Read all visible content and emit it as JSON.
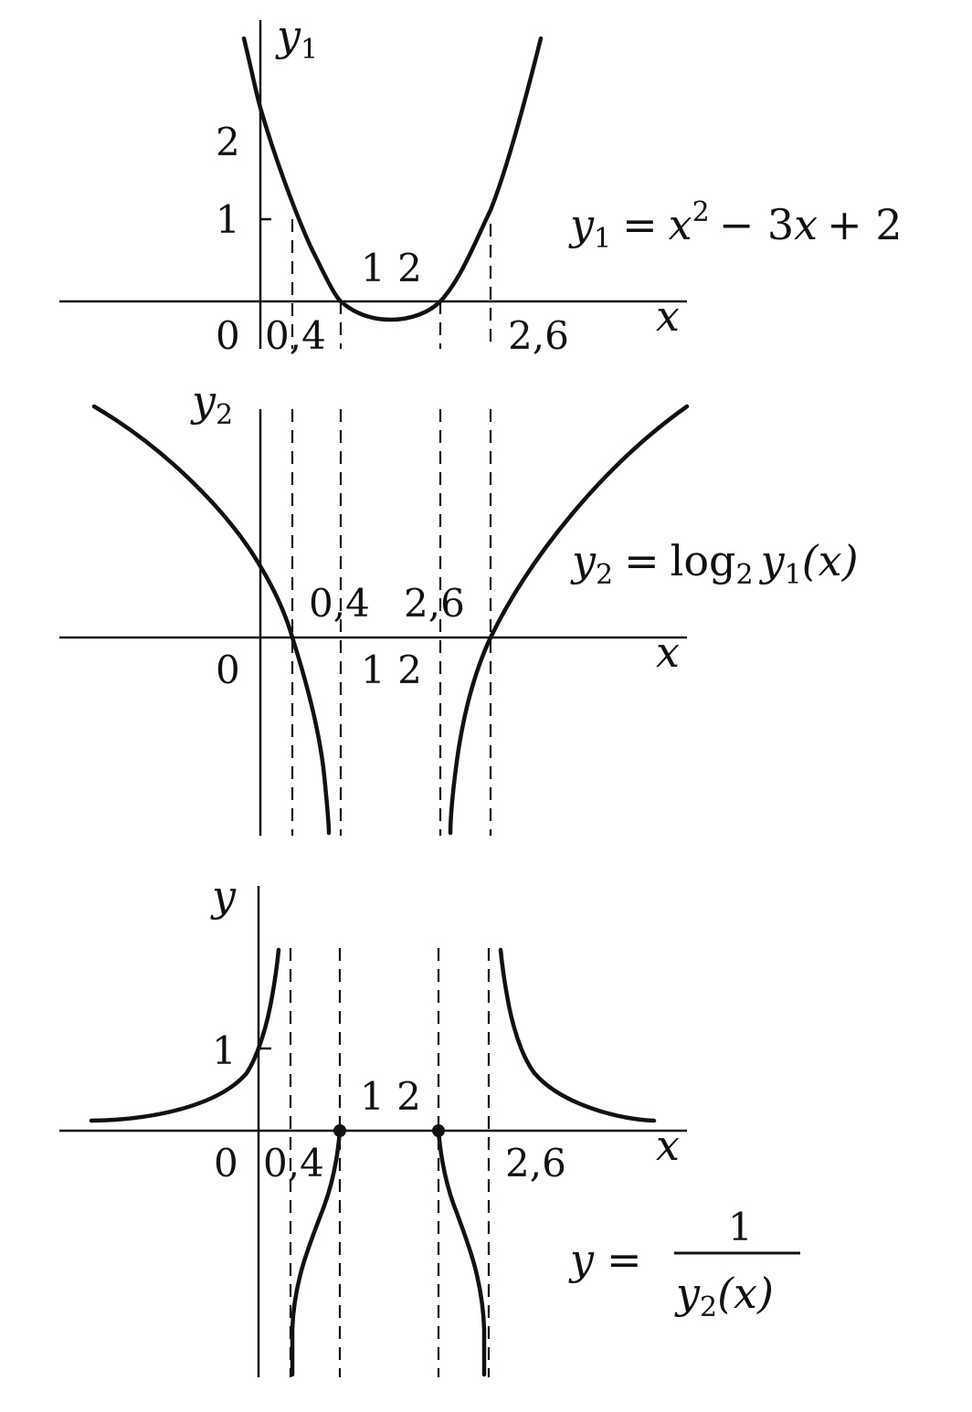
{
  "chart_data": [
    {
      "type": "line",
      "title": "",
      "xlabel": "x",
      "ylabel": "y",
      "ylabel_sub": "1",
      "x_ticks": [
        "0",
        "0,4",
        "1 2",
        "2,6"
      ],
      "y_ticks": [
        "1",
        "2"
      ],
      "guide_lines_at_x": [
        0.4,
        1,
        2,
        2.6
      ],
      "formula": {
        "var": "y",
        "sub": "1",
        "eq": "=",
        "rhs_a": "x",
        "rhs_a_sup": "2",
        "rhs_b": "− 3",
        "rhs_c": "x",
        "rhs_d": "+ 2"
      },
      "series": [
        {
          "x": [
            -0.15,
            0,
            0.4,
            1,
            1.5,
            2,
            2.6,
            3.15
          ],
          "values": [
            2.47,
            2,
            0.96,
            0,
            -0.25,
            0,
            0.96,
            2.47
          ]
        }
      ],
      "xlim": [
        -2,
        4.3
      ],
      "ylim": [
        -0.4,
        2.7
      ],
      "grid": false
    },
    {
      "type": "line",
      "title": "",
      "xlabel": "x",
      "ylabel": "y",
      "ylabel_sub": "2",
      "x_ticks": [
        "0",
        "0,4",
        "2,6",
        "1 2"
      ],
      "guide_lines_at_x": [
        0,
        0.4,
        1,
        2,
        2.6
      ],
      "formula": {
        "var": "y",
        "sub": "2",
        "eq": "=",
        "fn": "log",
        "fn_sub": "2",
        "arg": "y",
        "arg_sub": "1",
        "tail": "(x)"
      },
      "series": [
        {
          "name": "",
          "x": [
            -1.7,
            0,
            0.4,
            0.9
          ],
          "values": [
            2.5,
            1,
            0,
            -2
          ]
        },
        {
          "name": "",
          "x": [
            2.1,
            2.6,
            4.3
          ],
          "values": [
            -2,
            0,
            2.5
          ]
        }
      ],
      "grid": false
    },
    {
      "type": "line",
      "title": "",
      "xlabel": "x",
      "ylabel": "y",
      "x_ticks": [
        "0",
        "0,4",
        "1 2",
        "2,6"
      ],
      "y_ticks": [
        "1"
      ],
      "guide_lines_at_x": [
        0.4,
        1,
        2,
        2.6
      ],
      "formula": {
        "var": "y",
        "eq": "=",
        "num": "1",
        "den_var": "y",
        "den_sub": "2",
        "den_tail": "(x)"
      },
      "series": [
        {
          "name": "",
          "x": [
            -1.7,
            0,
            0.3
          ],
          "values": [
            0.1,
            1,
            2.2
          ]
        },
        {
          "name": "",
          "x": [
            0.4,
            1
          ],
          "values": [
            -3,
            0
          ]
        },
        {
          "name": "",
          "x": [
            2,
            2.6
          ],
          "values": [
            0,
            -3
          ]
        },
        {
          "name": "",
          "x": [
            2.7,
            4.3
          ],
          "values": [
            2.2,
            0.1
          ]
        }
      ],
      "points": [
        {
          "x": 1,
          "y": 0
        },
        {
          "x": 2,
          "y": 0
        }
      ],
      "grid": false
    }
  ]
}
